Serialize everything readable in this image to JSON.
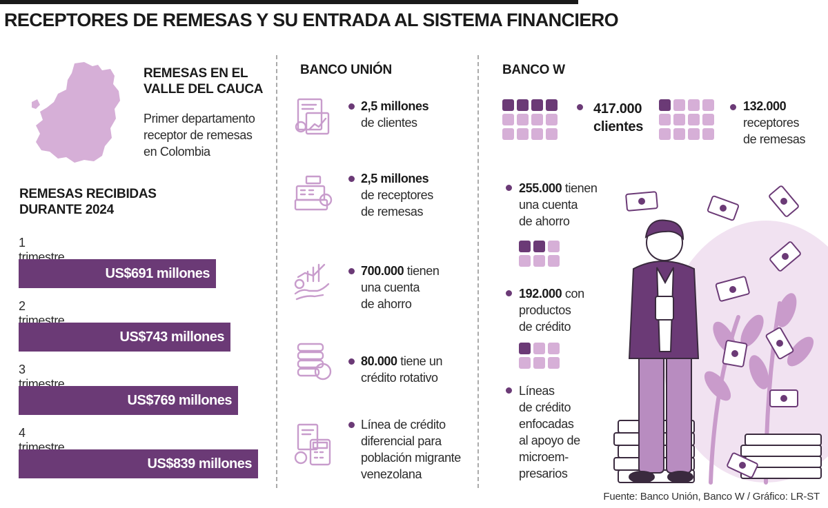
{
  "title": "RECEPTORES DE REMESAS Y SU ENTRADA AL SISTEMA FINANCIERO",
  "valle": {
    "heading_line1": "REMESAS EN EL",
    "heading_line2": "VALLE DEL CAUCA",
    "desc_line1": "Primer departamento",
    "desc_line2": "receptor de remesas",
    "desc_line3": "en Colombia"
  },
  "remesas": {
    "heading_line1": "REMESAS RECIBIDAS",
    "heading_line2": "DURANTE 2024"
  },
  "chart_data": {
    "type": "bar",
    "orientation": "horizontal",
    "title": "REMESAS RECIBIDAS DURANTE 2024",
    "categories": [
      "1 trimestre",
      "2 trimestre",
      "3 trimestre",
      "4 trimestre"
    ],
    "values": [
      691,
      743,
      769,
      839
    ],
    "value_labels": [
      "US$691 millones",
      "US$743 millones",
      "US$769 millones",
      "US$839 millones"
    ],
    "xlim": [
      0,
      839
    ],
    "bar_color": "#6b3a76",
    "grid": false
  },
  "banco_union": {
    "heading": "BANCO UNIÓN",
    "items": [
      {
        "icon": "documents-chart-icon",
        "bold": "2,5 millones",
        "rest": "",
        "lines": [
          "de clientes"
        ]
      },
      {
        "icon": "cash-register-icon",
        "bold": "2,5 millones",
        "rest": "",
        "lines": [
          "de receptores",
          "de remesas"
        ]
      },
      {
        "icon": "hand-growth-chart-icon",
        "bold": "700.000",
        "rest": " tienen",
        "lines": [
          "una cuenta",
          "de ahorro"
        ]
      },
      {
        "icon": "coin-stack-icon",
        "bold": "80.000",
        "rest": " tiene un",
        "lines": [
          "crédito rotativo"
        ]
      },
      {
        "icon": "calculator-document-icon",
        "bold": "",
        "rest": "Línea de crédito",
        "lines": [
          "diferencial para",
          "población migrante",
          "venezolana"
        ]
      }
    ]
  },
  "banco_w": {
    "heading": "BANCO W",
    "clientes": {
      "value": "417.000",
      "label": "clientes"
    },
    "receptores": {
      "value": "132.000",
      "line1": "receptores",
      "line2": "de remesas"
    },
    "ahorro": {
      "bold": "255.000",
      "rest": " tienen",
      "line2": "una cuenta",
      "line3": "de ahorro"
    },
    "credito": {
      "bold": "192.000",
      "rest": " con",
      "line2": "productos",
      "line3": "de crédito"
    },
    "lineas": {
      "lines": [
        "Líneas",
        "de crédito",
        "enfocadas",
        "al apoyo de",
        "microem-",
        "presarios"
      ]
    },
    "colors": {
      "filled": "#6b3a76",
      "empty": "#d6afd7"
    }
  },
  "source": "Fuente: Banco Unión, Banco W / Gráfico: LR-ST"
}
